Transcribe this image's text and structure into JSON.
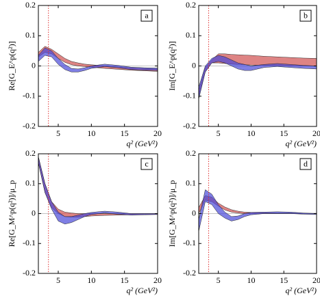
{
  "chart_data": [
    {
      "type": "band",
      "label": "a",
      "ylabel": "Re[G_E^p(q²)]",
      "xlabel": "q² (GeV²)",
      "x": [
        2,
        3,
        4,
        5,
        6,
        7,
        8,
        9,
        10,
        12,
        14,
        16,
        18,
        20
      ],
      "xlim": [
        2,
        20
      ],
      "xticks": [
        5,
        10,
        15,
        20
      ],
      "ylim": [
        -0.2,
        0.2
      ],
      "yticks": [
        -0.2,
        -0.1,
        0,
        0.1,
        0.2
      ],
      "vline": 3.52,
      "vline_color": "#e03030",
      "series": [
        {
          "color": "#d05050",
          "lower": [
            0.03,
            0.045,
            0.04,
            0.025,
            0.012,
            0.004,
            0,
            -0.002,
            -0.004,
            -0.008,
            -0.011,
            -0.014,
            -0.016,
            -0.018
          ],
          "upper": [
            0.045,
            0.065,
            0.055,
            0.04,
            0.025,
            0.015,
            0.01,
            0.006,
            0.004,
            0,
            -0.003,
            -0.006,
            -0.008,
            -0.01
          ]
        },
        {
          "color": "#4848d8",
          "lower": [
            0.015,
            0.035,
            0.03,
            0.005,
            -0.012,
            -0.02,
            -0.02,
            -0.015,
            -0.008,
            -0.002,
            -0.006,
            -0.012,
            -0.014,
            -0.015
          ],
          "upper": [
            0.035,
            0.06,
            0.05,
            0.025,
            0.005,
            -0.008,
            -0.01,
            -0.006,
            0,
            0.006,
            0.002,
            -0.004,
            -0.006,
            -0.007
          ]
        }
      ]
    },
    {
      "type": "band",
      "label": "b",
      "ylabel": "Im[G_E^p(q²)]",
      "xlabel": "q² (GeV²)",
      "x": [
        2,
        3,
        4,
        5,
        6,
        7,
        8,
        9,
        10,
        12,
        14,
        16,
        18,
        20
      ],
      "xlim": [
        2,
        20
      ],
      "xticks": [
        5,
        10,
        15,
        20
      ],
      "ylim": [
        -0.2,
        0.2
      ],
      "yticks": [
        -0.2,
        -0.1,
        0,
        0.1,
        0.2
      ],
      "vline": 3.52,
      "vline_color": "#e03030",
      "series": [
        {
          "color": "#d05050",
          "lower": [
            -0.1,
            -0.02,
            0.01,
            0.01,
            0.008,
            0.006,
            0.005,
            0.004,
            0.003,
            0.002,
            0.001,
            0,
            0,
            0
          ],
          "upper": [
            -0.08,
            -0.005,
            0.02,
            0.04,
            0.04,
            0.038,
            0.037,
            0.036,
            0.035,
            0.032,
            0.03,
            0.028,
            0.026,
            0.025
          ]
        },
        {
          "color": "#4848d8",
          "lower": [
            -0.11,
            -0.02,
            0.01,
            0.015,
            0.01,
            0,
            -0.01,
            -0.015,
            -0.015,
            -0.005,
            -0.002,
            -0.005,
            -0.008,
            -0.01
          ],
          "upper": [
            -0.07,
            0,
            0.025,
            0.035,
            0.03,
            0.02,
            0.01,
            0.005,
            0,
            0.005,
            0.008,
            0.005,
            0.002,
            0
          ]
        }
      ]
    },
    {
      "type": "band",
      "label": "c",
      "ylabel": "Re[G_M^p(q²)]/μ_p",
      "xlabel": "q² (GeV²)",
      "x": [
        2,
        3,
        4,
        5,
        6,
        7,
        8,
        9,
        10,
        12,
        14,
        16,
        18,
        20
      ],
      "xlim": [
        2,
        20
      ],
      "xticks": [
        5,
        10,
        15,
        20
      ],
      "ylim": [
        -0.2,
        0.2
      ],
      "yticks": [
        -0.2,
        -0.1,
        0,
        0.1,
        0.2
      ],
      "vline": 3.52,
      "vline_color": "#e03030",
      "series": [
        {
          "color": "#d05050",
          "lower": [
            0.17,
            0.07,
            0.02,
            0,
            -0.01,
            -0.012,
            -0.012,
            -0.01,
            -0.008,
            -0.006,
            -0.005,
            -0.004,
            -0.003,
            -0.003
          ],
          "upper": [
            0.19,
            0.1,
            0.04,
            0.015,
            0.005,
            0.002,
            0,
            0,
            0,
            0,
            0,
            0,
            0,
            0
          ]
        },
        {
          "color": "#4848d8",
          "lower": [
            0.17,
            0.07,
            0.015,
            -0.025,
            -0.035,
            -0.03,
            -0.02,
            -0.01,
            -0.003,
            0.002,
            -0.002,
            -0.005,
            -0.004,
            -0.003
          ],
          "upper": [
            0.19,
            0.1,
            0.04,
            0.005,
            -0.01,
            -0.01,
            -0.005,
            0,
            0.004,
            0.008,
            0.005,
            0,
            0,
            0
          ]
        }
      ]
    },
    {
      "type": "band",
      "label": "d",
      "ylabel": "Im[G_M^p(q²)]/μ_p",
      "xlabel": "q² (GeV²)",
      "x": [
        2,
        3,
        4,
        5,
        6,
        7,
        8,
        9,
        10,
        12,
        14,
        16,
        18,
        20
      ],
      "xlim": [
        2,
        20
      ],
      "xticks": [
        5,
        10,
        15,
        20
      ],
      "ylim": [
        -0.2,
        0.2
      ],
      "yticks": [
        -0.2,
        -0.1,
        0,
        0.1,
        0.2
      ],
      "vline": 3.52,
      "vline_color": "#e03030",
      "series": [
        {
          "color": "#d05050",
          "lower": [
            0,
            0.045,
            0.04,
            0.025,
            0.012,
            0.005,
            0.002,
            0,
            0,
            0,
            0,
            0,
            0,
            0
          ],
          "upper": [
            0.02,
            0.06,
            0.055,
            0.035,
            0.022,
            0.013,
            0.008,
            0.005,
            0.004,
            0.003,
            0.002,
            0.002,
            0.001,
            0.001
          ]
        },
        {
          "color": "#4848d8",
          "lower": [
            -0.06,
            0.04,
            0.03,
            0,
            -0.015,
            -0.025,
            -0.02,
            -0.01,
            -0.004,
            0,
            0,
            0,
            -0.002,
            -0.003
          ],
          "upper": [
            -0.02,
            0.08,
            0.065,
            0.03,
            0.005,
            -0.01,
            -0.008,
            0,
            0.004,
            0.005,
            0.006,
            0.005,
            0.002,
            0
          ]
        }
      ]
    }
  ]
}
